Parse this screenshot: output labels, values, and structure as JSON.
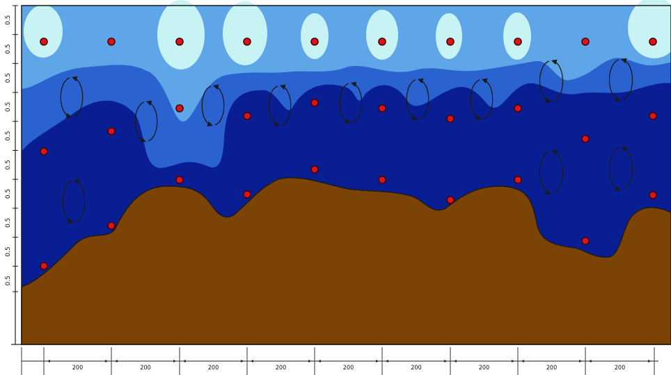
{
  "diagram": {
    "left_axis_tick_label": "0.5",
    "left_axis_tick_count": 10,
    "bottom_dimension_label": "200",
    "bottom_segment_count": 9,
    "colors": {
      "palest_water": "#c8f3f4",
      "light_water": "#5fa6e8",
      "mid_water": "#2a63cf",
      "deep_water": "#0a1e93",
      "sediment": "#7b4306",
      "point_fill": "#d9151c",
      "point_stroke": "#4a0000",
      "outline": "#1a1a1a"
    },
    "icons": {
      "sample_point": "circle",
      "circulation": "circular-arrows-icon"
    }
  }
}
